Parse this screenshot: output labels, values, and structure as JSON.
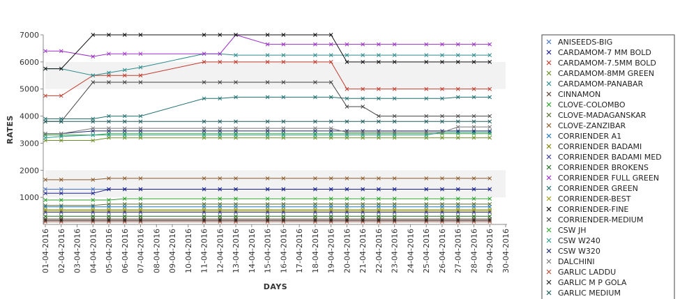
{
  "chart_data": {
    "type": "line",
    "title": "",
    "xlabel": "DAYS",
    "ylabel": "RATES",
    "ylim": [
      0,
      7000
    ],
    "y_ticks": [
      1000,
      2000,
      3000,
      4000,
      5000,
      6000,
      7000
    ],
    "y_tick_labels": [
      "1000",
      "2000",
      "3000",
      "4000",
      "5000",
      "6000",
      "7000"
    ],
    "x": [
      "01-04-2016",
      "02-04-2016",
      "03-04-2016",
      "04-04-2016",
      "05-04-2016",
      "06-04-2016",
      "07-04-2016",
      "08-04-2016",
      "09-04-2016",
      "10-04-2016",
      "11-04-2016",
      "12-04-2016",
      "13-04-2016",
      "14-04-2016",
      "15-04-2016",
      "16-04-2016",
      "17-04-2016",
      "18-04-2016",
      "19-04-2016",
      "20-04-2016",
      "21-04-2016",
      "22-04-2016",
      "23-04-2016",
      "24-04-2016",
      "25-04-2016",
      "26-04-2016",
      "27-04-2016",
      "28-04-2016",
      "29-04-2016",
      "30-04-2016"
    ],
    "grid": "alternating horizontal bands",
    "legend_position": "right",
    "series": [
      {
        "name": "ANISEEDS-BIG",
        "color": "#4b72c4",
        "values": [
          1300,
          1300,
          null,
          1300,
          1300,
          1300,
          1300,
          null,
          null,
          null,
          1300,
          1300,
          1300,
          null,
          1300,
          1300,
          null,
          1300,
          1300,
          1300,
          1300,
          1300,
          1300,
          null,
          1300,
          1300,
          1300,
          1300,
          1300,
          null
        ]
      },
      {
        "name": "CARDAMOM-7 MM BOLD",
        "color": "#1a1f8c",
        "values": [
          1150,
          1150,
          null,
          1150,
          1300,
          1300,
          1300,
          null,
          null,
          null,
          1300,
          1300,
          1300,
          null,
          1300,
          1300,
          null,
          1300,
          1300,
          1300,
          1300,
          1300,
          1300,
          null,
          1300,
          1300,
          1300,
          1300,
          1300,
          null
        ]
      },
      {
        "name": "CARDAMOM-7.5MM BOLD",
        "color": "#c0392b",
        "values": [
          4750,
          4750,
          null,
          5500,
          5500,
          5500,
          5500,
          null,
          null,
          null,
          6000,
          6000,
          6000,
          null,
          6000,
          6000,
          null,
          6000,
          6000,
          5000,
          5000,
          5000,
          5000,
          null,
          5000,
          5000,
          5000,
          5000,
          5000,
          null
        ]
      },
      {
        "name": "CARDAMOM-8MM GREEN",
        "color": "#6b8e23",
        "values": [
          3100,
          3100,
          null,
          3100,
          3200,
          3200,
          3200,
          null,
          null,
          null,
          3200,
          3200,
          3200,
          null,
          3200,
          3200,
          null,
          3200,
          3200,
          3200,
          3200,
          3200,
          3200,
          null,
          3200,
          3200,
          3200,
          3200,
          3200,
          null
        ]
      },
      {
        "name": "CARDAMOM-PANABAR",
        "color": "#2e8b8b",
        "values": [
          5750,
          5750,
          null,
          5500,
          5600,
          5700,
          5800,
          null,
          null,
          null,
          6300,
          6300,
          6250,
          null,
          6250,
          6250,
          null,
          6250,
          6250,
          6250,
          6250,
          6250,
          6250,
          null,
          6250,
          6250,
          6250,
          6250,
          6250,
          null
        ]
      },
      {
        "name": "CINNAMON",
        "color": "#5a3e2b",
        "values": [
          200,
          200,
          null,
          200,
          200,
          200,
          200,
          null,
          null,
          null,
          200,
          200,
          200,
          null,
          200,
          200,
          null,
          200,
          200,
          200,
          200,
          200,
          200,
          null,
          200,
          200,
          200,
          200,
          200,
          null
        ]
      },
      {
        "name": "CLOVE-COLOMBO",
        "color": "#2ca02c",
        "values": [
          900,
          900,
          null,
          900,
          900,
          950,
          950,
          null,
          null,
          null,
          950,
          950,
          950,
          null,
          950,
          950,
          null,
          950,
          950,
          950,
          950,
          950,
          950,
          null,
          950,
          950,
          950,
          950,
          950,
          null
        ]
      },
      {
        "name": "CLOVE-MADAGANSKAR",
        "color": "#556b2f",
        "values": [
          700,
          700,
          null,
          700,
          750,
          750,
          750,
          null,
          null,
          null,
          750,
          750,
          750,
          null,
          750,
          750,
          null,
          750,
          750,
          750,
          750,
          750,
          750,
          null,
          750,
          750,
          750,
          750,
          750,
          null
        ]
      },
      {
        "name": "CLOVE-ZANZIBAR",
        "color": "#8b5a2b",
        "values": [
          1650,
          1650,
          null,
          1650,
          1700,
          1700,
          1700,
          null,
          null,
          null,
          1700,
          1700,
          1700,
          null,
          1700,
          1700,
          null,
          1700,
          1700,
          1700,
          1700,
          1700,
          1700,
          null,
          1700,
          1700,
          1700,
          1700,
          1700,
          null
        ]
      },
      {
        "name": "CORRIENDER A1",
        "color": "#1f77b4",
        "values": [
          650,
          650,
          null,
          650,
          650,
          650,
          650,
          null,
          null,
          null,
          650,
          650,
          650,
          null,
          650,
          650,
          null,
          650,
          650,
          650,
          650,
          650,
          650,
          null,
          650,
          650,
          650,
          650,
          650,
          null
        ]
      },
      {
        "name": "CORRIENDER BADAMI",
        "color": "#808000",
        "values": [
          500,
          500,
          null,
          500,
          500,
          500,
          500,
          null,
          null,
          null,
          500,
          500,
          500,
          null,
          500,
          500,
          null,
          500,
          500,
          500,
          500,
          500,
          500,
          null,
          500,
          500,
          500,
          500,
          500,
          null
        ]
      },
      {
        "name": "CORRIENDER BADAMI MED",
        "color": "#3b3b98",
        "values": [
          450,
          450,
          null,
          450,
          450,
          450,
          450,
          null,
          null,
          null,
          450,
          450,
          450,
          null,
          450,
          450,
          null,
          450,
          450,
          450,
          450,
          450,
          450,
          null,
          450,
          450,
          450,
          450,
          450,
          null
        ]
      },
      {
        "name": "CORRIENDER BROKENS",
        "color": "#1e6b1e",
        "values": [
          300,
          300,
          null,
          300,
          300,
          300,
          300,
          null,
          null,
          null,
          300,
          300,
          300,
          null,
          300,
          300,
          null,
          300,
          300,
          300,
          300,
          300,
          300,
          null,
          300,
          300,
          300,
          300,
          300,
          null
        ]
      },
      {
        "name": "CORRIENDER FULL GREEN",
        "color": "#9b30c8",
        "values": [
          6400,
          6400,
          null,
          6200,
          6300,
          6300,
          6300,
          null,
          null,
          null,
          6300,
          6300,
          7000,
          null,
          6650,
          6650,
          null,
          6650,
          6650,
          6650,
          6650,
          6650,
          6650,
          null,
          6650,
          6650,
          6650,
          6650,
          6650,
          null
        ]
      },
      {
        "name": "CORRIENDER GREEN",
        "color": "#1f6f6f",
        "values": [
          3900,
          3900,
          null,
          3900,
          4000,
          4000,
          4000,
          null,
          null,
          null,
          4650,
          4650,
          4700,
          null,
          4700,
          4700,
          null,
          4700,
          4700,
          4650,
          4650,
          4650,
          4650,
          null,
          4650,
          4650,
          4700,
          4700,
          4700,
          null
        ]
      },
      {
        "name": "CORRIENDER-BEST",
        "color": "#a0a020",
        "values": [
          550,
          550,
          null,
          550,
          550,
          550,
          550,
          null,
          null,
          null,
          550,
          550,
          550,
          null,
          550,
          550,
          null,
          550,
          550,
          550,
          550,
          550,
          550,
          null,
          550,
          550,
          550,
          550,
          550,
          null
        ]
      },
      {
        "name": "CORRIENDER-FINE",
        "color": "#111111",
        "values": [
          5750,
          5750,
          null,
          7000,
          7000,
          7000,
          7000,
          null,
          null,
          null,
          7000,
          7000,
          7000,
          null,
          7000,
          7000,
          null,
          7000,
          7000,
          6000,
          6000,
          6000,
          6000,
          null,
          6000,
          6000,
          6000,
          6000,
          6000,
          null
        ]
      },
      {
        "name": "CORRIENDER-MEDIUM",
        "color": "#444444",
        "values": [
          3800,
          3800,
          null,
          5250,
          5250,
          5250,
          5250,
          null,
          null,
          null,
          5250,
          5250,
          5250,
          null,
          5250,
          5250,
          null,
          5250,
          5250,
          4350,
          4350,
          4000,
          4000,
          null,
          4000,
          4000,
          4000,
          4000,
          4000,
          null
        ]
      },
      {
        "name": "CSW JH",
        "color": "#33a833",
        "values": [
          3300,
          3300,
          null,
          3300,
          3350,
          3350,
          3350,
          null,
          null,
          null,
          3350,
          3350,
          3350,
          null,
          3350,
          3350,
          null,
          3350,
          3350,
          3350,
          3350,
          3350,
          3350,
          null,
          3350,
          3350,
          3350,
          3350,
          3350,
          null
        ]
      },
      {
        "name": "CSW W240",
        "color": "#2a9d8f",
        "values": [
          3200,
          3250,
          null,
          3300,
          3300,
          3300,
          3300,
          null,
          null,
          null,
          3300,
          3300,
          3300,
          null,
          3300,
          3300,
          null,
          3300,
          3300,
          3300,
          3300,
          3300,
          3300,
          null,
          3300,
          3400,
          3400,
          3400,
          3400,
          null
        ]
      },
      {
        "name": "CSW W320",
        "color": "#1b2a6b",
        "values": [
          3350,
          3350,
          null,
          3450,
          3450,
          3450,
          3450,
          null,
          null,
          null,
          3450,
          3450,
          3450,
          null,
          3450,
          3450,
          null,
          3450,
          3450,
          3450,
          3450,
          3450,
          3450,
          null,
          3450,
          3450,
          3450,
          3450,
          3450,
          null
        ]
      },
      {
        "name": "DALCHINI",
        "color": "#777777",
        "values": [
          3350,
          3350,
          null,
          3550,
          3550,
          3550,
          3550,
          null,
          null,
          null,
          3550,
          3550,
          3550,
          null,
          3550,
          3550,
          null,
          3550,
          3550,
          3400,
          3400,
          3400,
          3400,
          null,
          3400,
          3400,
          3600,
          3600,
          3600,
          null
        ]
      },
      {
        "name": "GARLIC LADDU",
        "color": "#b5523b",
        "values": [
          100,
          100,
          null,
          100,
          100,
          100,
          100,
          null,
          null,
          null,
          100,
          100,
          100,
          null,
          100,
          100,
          null,
          100,
          100,
          100,
          100,
          100,
          100,
          null,
          100,
          100,
          100,
          100,
          100,
          null
        ]
      },
      {
        "name": "GARLIC M P GOLA",
        "color": "#222222",
        "values": [
          150,
          150,
          null,
          150,
          150,
          150,
          150,
          null,
          null,
          null,
          150,
          150,
          150,
          null,
          150,
          150,
          null,
          150,
          150,
          150,
          150,
          150,
          150,
          null,
          150,
          150,
          150,
          150,
          150,
          null
        ]
      },
      {
        "name": "GARLIC MEDIUM",
        "color": "#1d5c5c",
        "values": [
          3800,
          3800,
          null,
          3800,
          3800,
          3800,
          3800,
          null,
          null,
          null,
          3800,
          3800,
          3800,
          null,
          3800,
          3800,
          null,
          3800,
          3800,
          3800,
          3800,
          3800,
          3800,
          null,
          3800,
          3800,
          3800,
          3800,
          3800,
          null
        ]
      }
    ]
  }
}
